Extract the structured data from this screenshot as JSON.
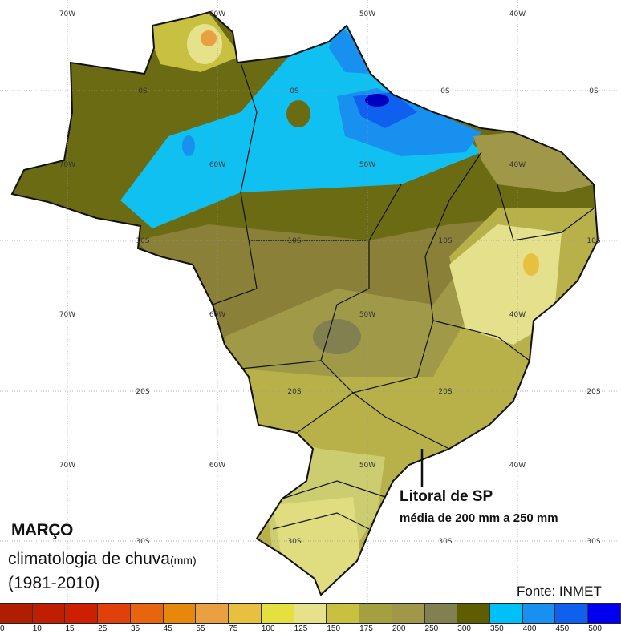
{
  "map": {
    "month": "MARÇO",
    "subtitle": "climatologia de chuva",
    "unit": "(mm)",
    "period": "(1981-2010)",
    "source": "Fonte: INMET",
    "callout_title": "Litoral de SP",
    "callout_text": "média de 200 mm a 250 mm",
    "longitude_labels": [
      "70W",
      "60W",
      "50W",
      "40W"
    ],
    "latitude_labels": [
      "0S",
      "10S",
      "20S",
      "30S"
    ]
  },
  "legend": {
    "values": [
      "0",
      "10",
      "15",
      "25",
      "35",
      "45",
      "55",
      "75",
      "100",
      "125",
      "150",
      "175",
      "200",
      "250",
      "300",
      "350",
      "400",
      "450",
      "500"
    ],
    "colors": [
      "#b01e00",
      "#c01e00",
      "#cc2000",
      "#e0400c",
      "#e8640e",
      "#e8880a",
      "#e8a040",
      "#e8c040",
      "#e4e040",
      "#e6e28c",
      "#c8c040",
      "#a4a040",
      "#a09848",
      "#808050",
      "#5e5e00",
      "#00c0f8",
      "#1890f0",
      "#1060f0",
      "#0000f0"
    ]
  }
}
